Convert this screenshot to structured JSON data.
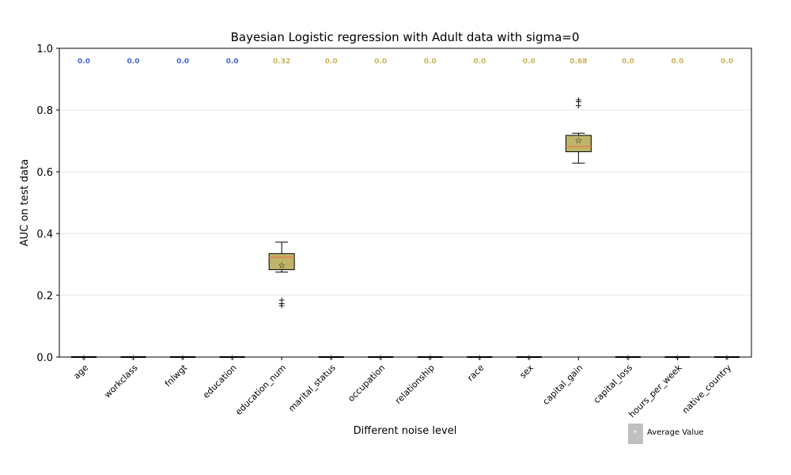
{
  "chart_data": {
    "type": "box",
    "title": "Bayesian Logistic regression with Adult data with sigma=0",
    "xlabel": "Different noise level",
    "ylabel": "AUC on test data",
    "ylim": [
      0,
      1
    ],
    "yticks": [
      "0.0",
      "0.2",
      "0.4",
      "0.6",
      "0.8",
      "1.0"
    ],
    "grid": "horizontal",
    "legend": {
      "label": "Average Value",
      "placement": "bottom-right"
    },
    "colors": {
      "low_label": "#4466cc",
      "high_label": "#c8b45a",
      "box_fill": "#bfb46a",
      "median": "#e08050",
      "flat_median": "#b04010",
      "grid": "#e6e6e6",
      "legend_patch": "#c0c0c0"
    },
    "categories": [
      "age",
      "workclass",
      "fnlwgt",
      "education",
      "education_num",
      "marital_status",
      "occupation",
      "relationship",
      "race",
      "sex",
      "capital_gain",
      "capital_loss",
      "hours_per_week",
      "native_country"
    ],
    "top_labels": [
      "0.0",
      "0.0",
      "0.0",
      "0.0",
      "0.32",
      "0.0",
      "0.0",
      "0.0",
      "0.0",
      "0.0",
      "0.68",
      "0.0",
      "0.0",
      "0.0"
    ],
    "label_colors": [
      "low",
      "low",
      "low",
      "low",
      "high",
      "high",
      "high",
      "high",
      "high",
      "high",
      "high",
      "high",
      "high",
      "high"
    ],
    "boxes": [
      {
        "whisker_low": 0,
        "q1": 0,
        "median": 0,
        "q3": 0,
        "whisker_high": 0,
        "mean": 0,
        "outliers": []
      },
      {
        "whisker_low": 0,
        "q1": 0,
        "median": 0,
        "q3": 0,
        "whisker_high": 0,
        "mean": 0,
        "outliers": []
      },
      {
        "whisker_low": 0,
        "q1": 0,
        "median": 0,
        "q3": 0,
        "whisker_high": 0,
        "mean": 0,
        "outliers": []
      },
      {
        "whisker_low": 0,
        "q1": 0,
        "median": 0,
        "q3": 0,
        "whisker_high": 0,
        "mean": 0,
        "outliers": []
      },
      {
        "whisker_low": 0.275,
        "q1": 0.283,
        "median": 0.323,
        "q3": 0.335,
        "whisker_high": 0.372,
        "mean": 0.298,
        "outliers": [
          0.186,
          0.175,
          0.168
        ]
      },
      {
        "whisker_low": 0,
        "q1": 0,
        "median": 0,
        "q3": 0,
        "whisker_high": 0,
        "mean": 0,
        "outliers": []
      },
      {
        "whisker_low": 0,
        "q1": 0,
        "median": 0,
        "q3": 0,
        "whisker_high": 0,
        "mean": 0,
        "outliers": []
      },
      {
        "whisker_low": 0,
        "q1": 0,
        "median": 0,
        "q3": 0,
        "whisker_high": 0,
        "mean": 0,
        "outliers": []
      },
      {
        "whisker_low": 0,
        "q1": 0,
        "median": 0,
        "q3": 0,
        "whisker_high": 0,
        "mean": 0,
        "outliers": []
      },
      {
        "whisker_low": 0,
        "q1": 0,
        "median": 0,
        "q3": 0,
        "whisker_high": 0,
        "mean": 0,
        "outliers": []
      },
      {
        "whisker_low": 0.628,
        "q1": 0.665,
        "median": 0.682,
        "q3": 0.718,
        "whisker_high": 0.725,
        "mean": 0.703,
        "outliers": [
          0.835,
          0.828,
          0.815
        ]
      },
      {
        "whisker_low": 0,
        "q1": 0,
        "median": 0,
        "q3": 0,
        "whisker_high": 0,
        "mean": 0,
        "outliers": []
      },
      {
        "whisker_low": 0,
        "q1": 0,
        "median": 0,
        "q3": 0,
        "whisker_high": 0,
        "mean": 0,
        "outliers": []
      },
      {
        "whisker_low": 0,
        "q1": 0,
        "median": 0,
        "q3": 0,
        "whisker_high": 0,
        "mean": 0,
        "outliers": []
      }
    ]
  }
}
